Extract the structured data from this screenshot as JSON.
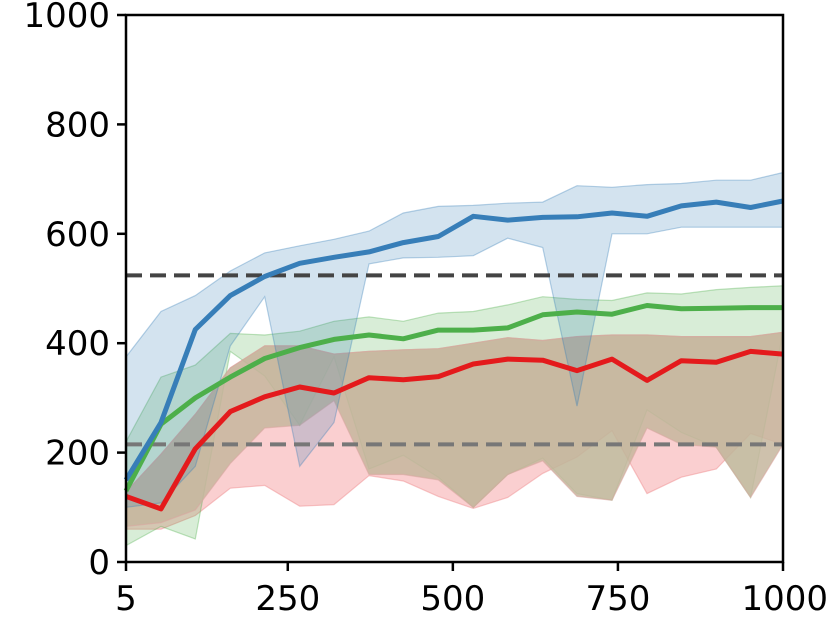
{
  "chart_data": {
    "type": "line",
    "title": "",
    "xlabel": "",
    "ylabel": "",
    "xlim": [
      5,
      1000
    ],
    "ylim": [
      0,
      1000
    ],
    "grid": false,
    "xticks": [
      5,
      250,
      500,
      750,
      1000
    ],
    "xtick_labels": [
      "5",
      "250",
      "500",
      "750",
      "1000"
    ],
    "yticks": [
      0,
      200,
      400,
      600,
      800,
      1000
    ],
    "ytick_labels": [
      "0",
      "200",
      "400",
      "600",
      "800",
      "1000"
    ],
    "x": [
      5,
      58,
      110,
      163,
      215,
      268,
      320,
      373,
      425,
      478,
      531,
      583,
      636,
      688,
      741,
      794,
      846,
      899,
      951,
      1000
    ],
    "hlines": [
      {
        "y": 524,
        "color": "#444444",
        "style": "dashed"
      },
      {
        "y": 215,
        "color": "#777777",
        "style": "dashed"
      }
    ],
    "series": [
      {
        "color": "#377eb8",
        "values": [
          150,
          255,
          425,
          487,
          522,
          546,
          557,
          567,
          584,
          595,
          632,
          625,
          630,
          631,
          638,
          632,
          651,
          658,
          648,
          660
        ],
        "upper": [
          375,
          458,
          487,
          532,
          565,
          578,
          590,
          605,
          638,
          650,
          652,
          656,
          658,
          688,
          685,
          690,
          692,
          698,
          698,
          712
        ],
        "lower": [
          100,
          108,
          175,
          395,
          485,
          175,
          255,
          545,
          556,
          557,
          560,
          592,
          575,
          285,
          600,
          600,
          612,
          612,
          612,
          612
        ]
      },
      {
        "color": "#4daf4a",
        "values": [
          130,
          252,
          300,
          338,
          372,
          392,
          407,
          415,
          408,
          424,
          424,
          428,
          452,
          457,
          453,
          469,
          463,
          464,
          465,
          465
        ],
        "upper": [
          220,
          338,
          360,
          418,
          415,
          422,
          440,
          448,
          440,
          455,
          458,
          470,
          485,
          480,
          478,
          492,
          490,
          498,
          502,
          505
        ],
        "lower": [
          30,
          65,
          42,
          385,
          340,
          250,
          375,
          170,
          195,
          155,
          100,
          160,
          190,
          125,
          113,
          278,
          237,
          210,
          118,
          420
        ]
      },
      {
        "color": "#e41a1c",
        "values": [
          120,
          97,
          207,
          275,
          302,
          320,
          309,
          337,
          333,
          339,
          362,
          371,
          369,
          350,
          371,
          332,
          368,
          365,
          385,
          380
        ]
      }
    ],
    "overlap_band": {
      "color": "#c5b69e",
      "upper": [
        128,
        197,
        270,
        355,
        395,
        395,
        380,
        385,
        388,
        390,
        400,
        410,
        405,
        412,
        415,
        415,
        412,
        412,
        412,
        420
      ],
      "lower": [
        65,
        72,
        95,
        180,
        245,
        250,
        295,
        160,
        160,
        150,
        100,
        160,
        185,
        120,
        113,
        245,
        215,
        210,
        118,
        215
      ]
    },
    "red_lower_band": {
      "color": "#f8bfc0",
      "upper": [
        128,
        197,
        270,
        355,
        395,
        395,
        380,
        385,
        388,
        390,
        400,
        410,
        405,
        412,
        415,
        415,
        412,
        412,
        412,
        420
      ],
      "lower": [
        60,
        60,
        85,
        135,
        140,
        102,
        105,
        158,
        148,
        120,
        98,
        118,
        162,
        192,
        240,
        125,
        155,
        170,
        235,
        215
      ]
    }
  }
}
